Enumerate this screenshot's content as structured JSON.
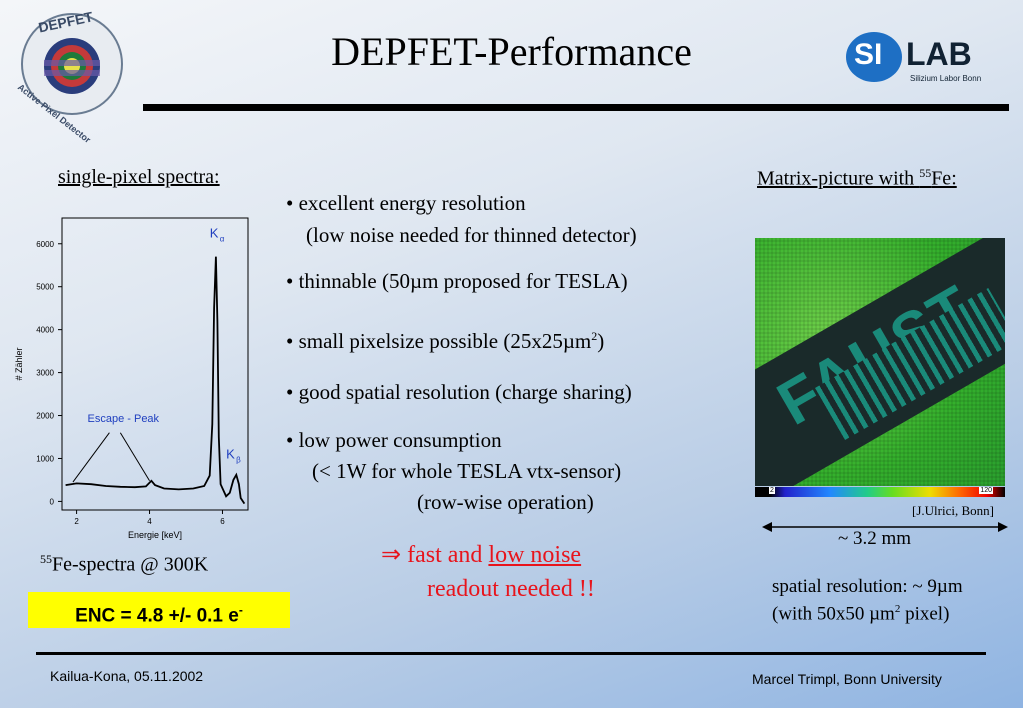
{
  "title": "DEPFET-Performance",
  "logo_left": {
    "top_text": "DEPFET",
    "bottom_text": "Active Pixel Detector"
  },
  "logo_right": {
    "si": "SI",
    "lab": "LAB",
    "sub": "Silizium Labor Bonn"
  },
  "left": {
    "heading": "single-pixel spectra:",
    "spectrum_caption_sup": "55",
    "spectrum_caption": "Fe-spectra @ 300K",
    "enc_text": "ENC = 4.8 +/- 0.1 e",
    "enc_sup": "-"
  },
  "chart_data": {
    "type": "line",
    "xlabel": "Energie [keV]",
    "ylabel": "# Zähler",
    "xlim": [
      1.6,
      6.7
    ],
    "ylim": [
      -200,
      6600
    ],
    "xticks": [
      "2",
      "4",
      "6"
    ],
    "yticks": [
      "0",
      "1000",
      "2000",
      "3000",
      "4000",
      "5000",
      "6000"
    ],
    "annotations": {
      "escape": "Escape - Peak",
      "k_alpha": "K",
      "k_alpha_sub": "α",
      "k_beta": "K",
      "k_beta_sub": "β"
    },
    "points": [
      [
        1.7,
        380
      ],
      [
        2.0,
        420
      ],
      [
        2.4,
        400
      ],
      [
        2.8,
        360
      ],
      [
        3.2,
        340
      ],
      [
        3.6,
        330
      ],
      [
        3.9,
        350
      ],
      [
        4.05,
        480
      ],
      [
        4.15,
        380
      ],
      [
        4.4,
        300
      ],
      [
        4.8,
        280
      ],
      [
        5.2,
        300
      ],
      [
        5.5,
        360
      ],
      [
        5.65,
        600
      ],
      [
        5.72,
        1800
      ],
      [
        5.77,
        4500
      ],
      [
        5.82,
        5700
      ],
      [
        5.86,
        4200
      ],
      [
        5.9,
        1500
      ],
      [
        5.95,
        400
      ],
      [
        6.1,
        120
      ],
      [
        6.2,
        200
      ],
      [
        6.3,
        500
      ],
      [
        6.38,
        620
      ],
      [
        6.45,
        400
      ],
      [
        6.5,
        80
      ],
      [
        6.6,
        -50
      ]
    ]
  },
  "middle": {
    "bullets": [
      {
        "text": "• excellent energy resolution"
      },
      {
        "text": "(low noise needed for thinned detector)"
      },
      {
        "text": "• thinnable (50µm proposed for TESLA)"
      },
      {
        "text": "• small pixelsize possible (25x25µm",
        "sup": "2",
        "tail": ")"
      },
      {
        "text": "• good spatial resolution (charge sharing)"
      },
      {
        "text": "• low power consumption"
      },
      {
        "text": "(< 1W for whole TESLA vtx-sensor)"
      },
      {
        "text": "(row-wise operation)"
      }
    ],
    "conclusion_pre": "⇒ fast and ",
    "conclusion_underline": "low noise",
    "conclusion_line2": "readout needed !!"
  },
  "right": {
    "heading": "Matrix-picture with ",
    "heading_sup": "55",
    "heading_tail": "Fe:",
    "image_text": "FAUST",
    "colorbar_min": "2",
    "colorbar_max": "120",
    "credit": "[J.Ulrici, Bonn]",
    "scale": "~ 3.2 mm",
    "resolution_line1": "spatial resolution: ~ 9µm",
    "resolution_line2_pre": "(with 50x50 µm",
    "resolution_line2_sup": "2",
    "resolution_line2_tail": " pixel)"
  },
  "footer": {
    "left": "Kailua-Kona, 05.11.2002",
    "right": "Marcel Trimpl, Bonn University"
  },
  "colors": {
    "accent_red": "#e8141c",
    "enc_bg": "#ffff00",
    "chart_blue": "#1f3fbf"
  }
}
